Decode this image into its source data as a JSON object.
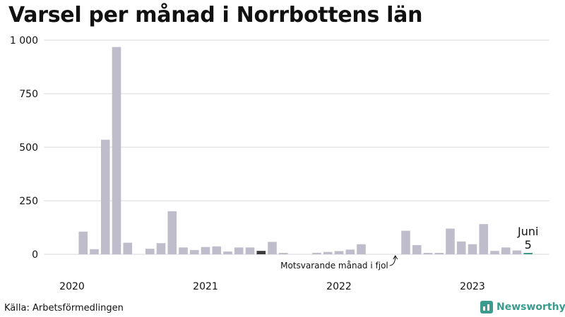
{
  "title": "Varsel per månad i Norrbottens län",
  "source": "Källa: Arbetsförmedlingen",
  "brand": {
    "name": "Newsworthy",
    "icon": "newsworthy-logo-icon",
    "color": "#3a9c8f"
  },
  "chart_data": {
    "type": "bar",
    "ylim": [
      0,
      1000
    ],
    "y_ticks": [
      {
        "value": 0,
        "label": "0"
      },
      {
        "value": 250,
        "label": "250"
      },
      {
        "value": 500,
        "label": "500"
      },
      {
        "value": 750,
        "label": "750"
      },
      {
        "value": 1000,
        "label": "1 000"
      }
    ],
    "year_labels": [
      "2020",
      "2021",
      "2022",
      "2023"
    ],
    "months": [
      "2020-01",
      "2020-02",
      "2020-03",
      "2020-04",
      "2020-05",
      "2020-06",
      "2020-07",
      "2020-08",
      "2020-09",
      "2020-10",
      "2020-11",
      "2020-12",
      "2021-01",
      "2021-02",
      "2021-03",
      "2021-04",
      "2021-05",
      "2021-06",
      "2021-07",
      "2021-08",
      "2021-09",
      "2021-10",
      "2021-11",
      "2021-12",
      "2022-01",
      "2022-02",
      "2022-03",
      "2022-04",
      "2022-05",
      "2022-06",
      "2022-07",
      "2022-08",
      "2022-09",
      "2022-10",
      "2022-11",
      "2022-12",
      "2023-01",
      "2023-02",
      "2023-03",
      "2023-04",
      "2023-05",
      "2023-06"
    ],
    "values": [
      0,
      106,
      24,
      535,
      968,
      54,
      0,
      26,
      52,
      201,
      32,
      20,
      34,
      37,
      13,
      32,
      32,
      16,
      58,
      5,
      0,
      0,
      7,
      11,
      15,
      22,
      47,
      0,
      0,
      0,
      110,
      43,
      5,
      6,
      120,
      60,
      47,
      141,
      16,
      32,
      18,
      5
    ],
    "highlight_months": [
      "2021-06",
      "2022-06"
    ],
    "current_month": "2023-06",
    "colors": {
      "bar": "#bfbdcc",
      "highlight": "#3d3d3d",
      "current": "#3a9c8f",
      "grid": "#d9d9d9"
    },
    "annotation": "Motsvarande månad i fjol",
    "callout": {
      "month_label": "Juni",
      "value_label": "5"
    },
    "grid": true
  }
}
